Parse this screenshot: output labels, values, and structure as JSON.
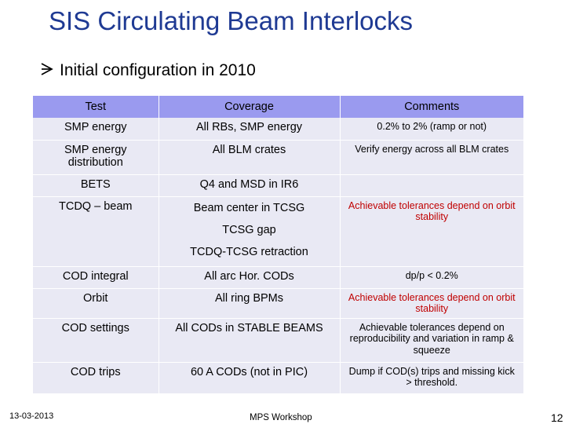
{
  "slide": {
    "title": "SIS Circulating Beam Interlocks",
    "bullet": "Initial configuration in 2010",
    "bullet_icon": "arrow-right-icon"
  },
  "table": {
    "headers": [
      "Test",
      "Coverage",
      "Comments"
    ],
    "rows": [
      {
        "test": "SMP energy",
        "coverage": "All RBs, SMP energy",
        "comments": "0.2% to 2% (ramp or not)"
      },
      {
        "test": "SMP energy distribution",
        "coverage": "All BLM crates",
        "comments": "Verify energy across all BLM crates"
      },
      {
        "test": "BETS",
        "coverage": "Q4 and MSD in IR6",
        "comments": ""
      },
      {
        "test": "TCDQ – beam",
        "coverage": "Beam center in TCSG",
        "coverage_2": "TCSG gap",
        "coverage_3": "TCDQ-TCSG retraction",
        "comments": "Achievable tolerances depend on orbit stability"
      },
      {
        "test": "COD integral",
        "coverage": "All arc Hor. CODs",
        "comments": "dp/p < 0.2%"
      },
      {
        "test": "Orbit",
        "coverage": "All ring BPMs",
        "comments": "Achievable tolerances depend on orbit stability"
      },
      {
        "test": "COD settings",
        "coverage": "All CODs in STABLE BEAMS",
        "comments": "Achievable tolerances depend on reproducibility and variation in ramp & squeeze"
      },
      {
        "test": "COD trips",
        "coverage": "60 A CODs (not in PIC)",
        "comments": "Dump if COD(s) trips and missing kick > threshold."
      }
    ]
  },
  "footer": {
    "date": "13-03-2013",
    "center": "MPS Workshop",
    "page": "12"
  },
  "colors": {
    "title": "#1f3a93",
    "header_bg": "#9a9aef",
    "cell_bg": "#e9e9f4",
    "highlight_text": "#c00000"
  }
}
